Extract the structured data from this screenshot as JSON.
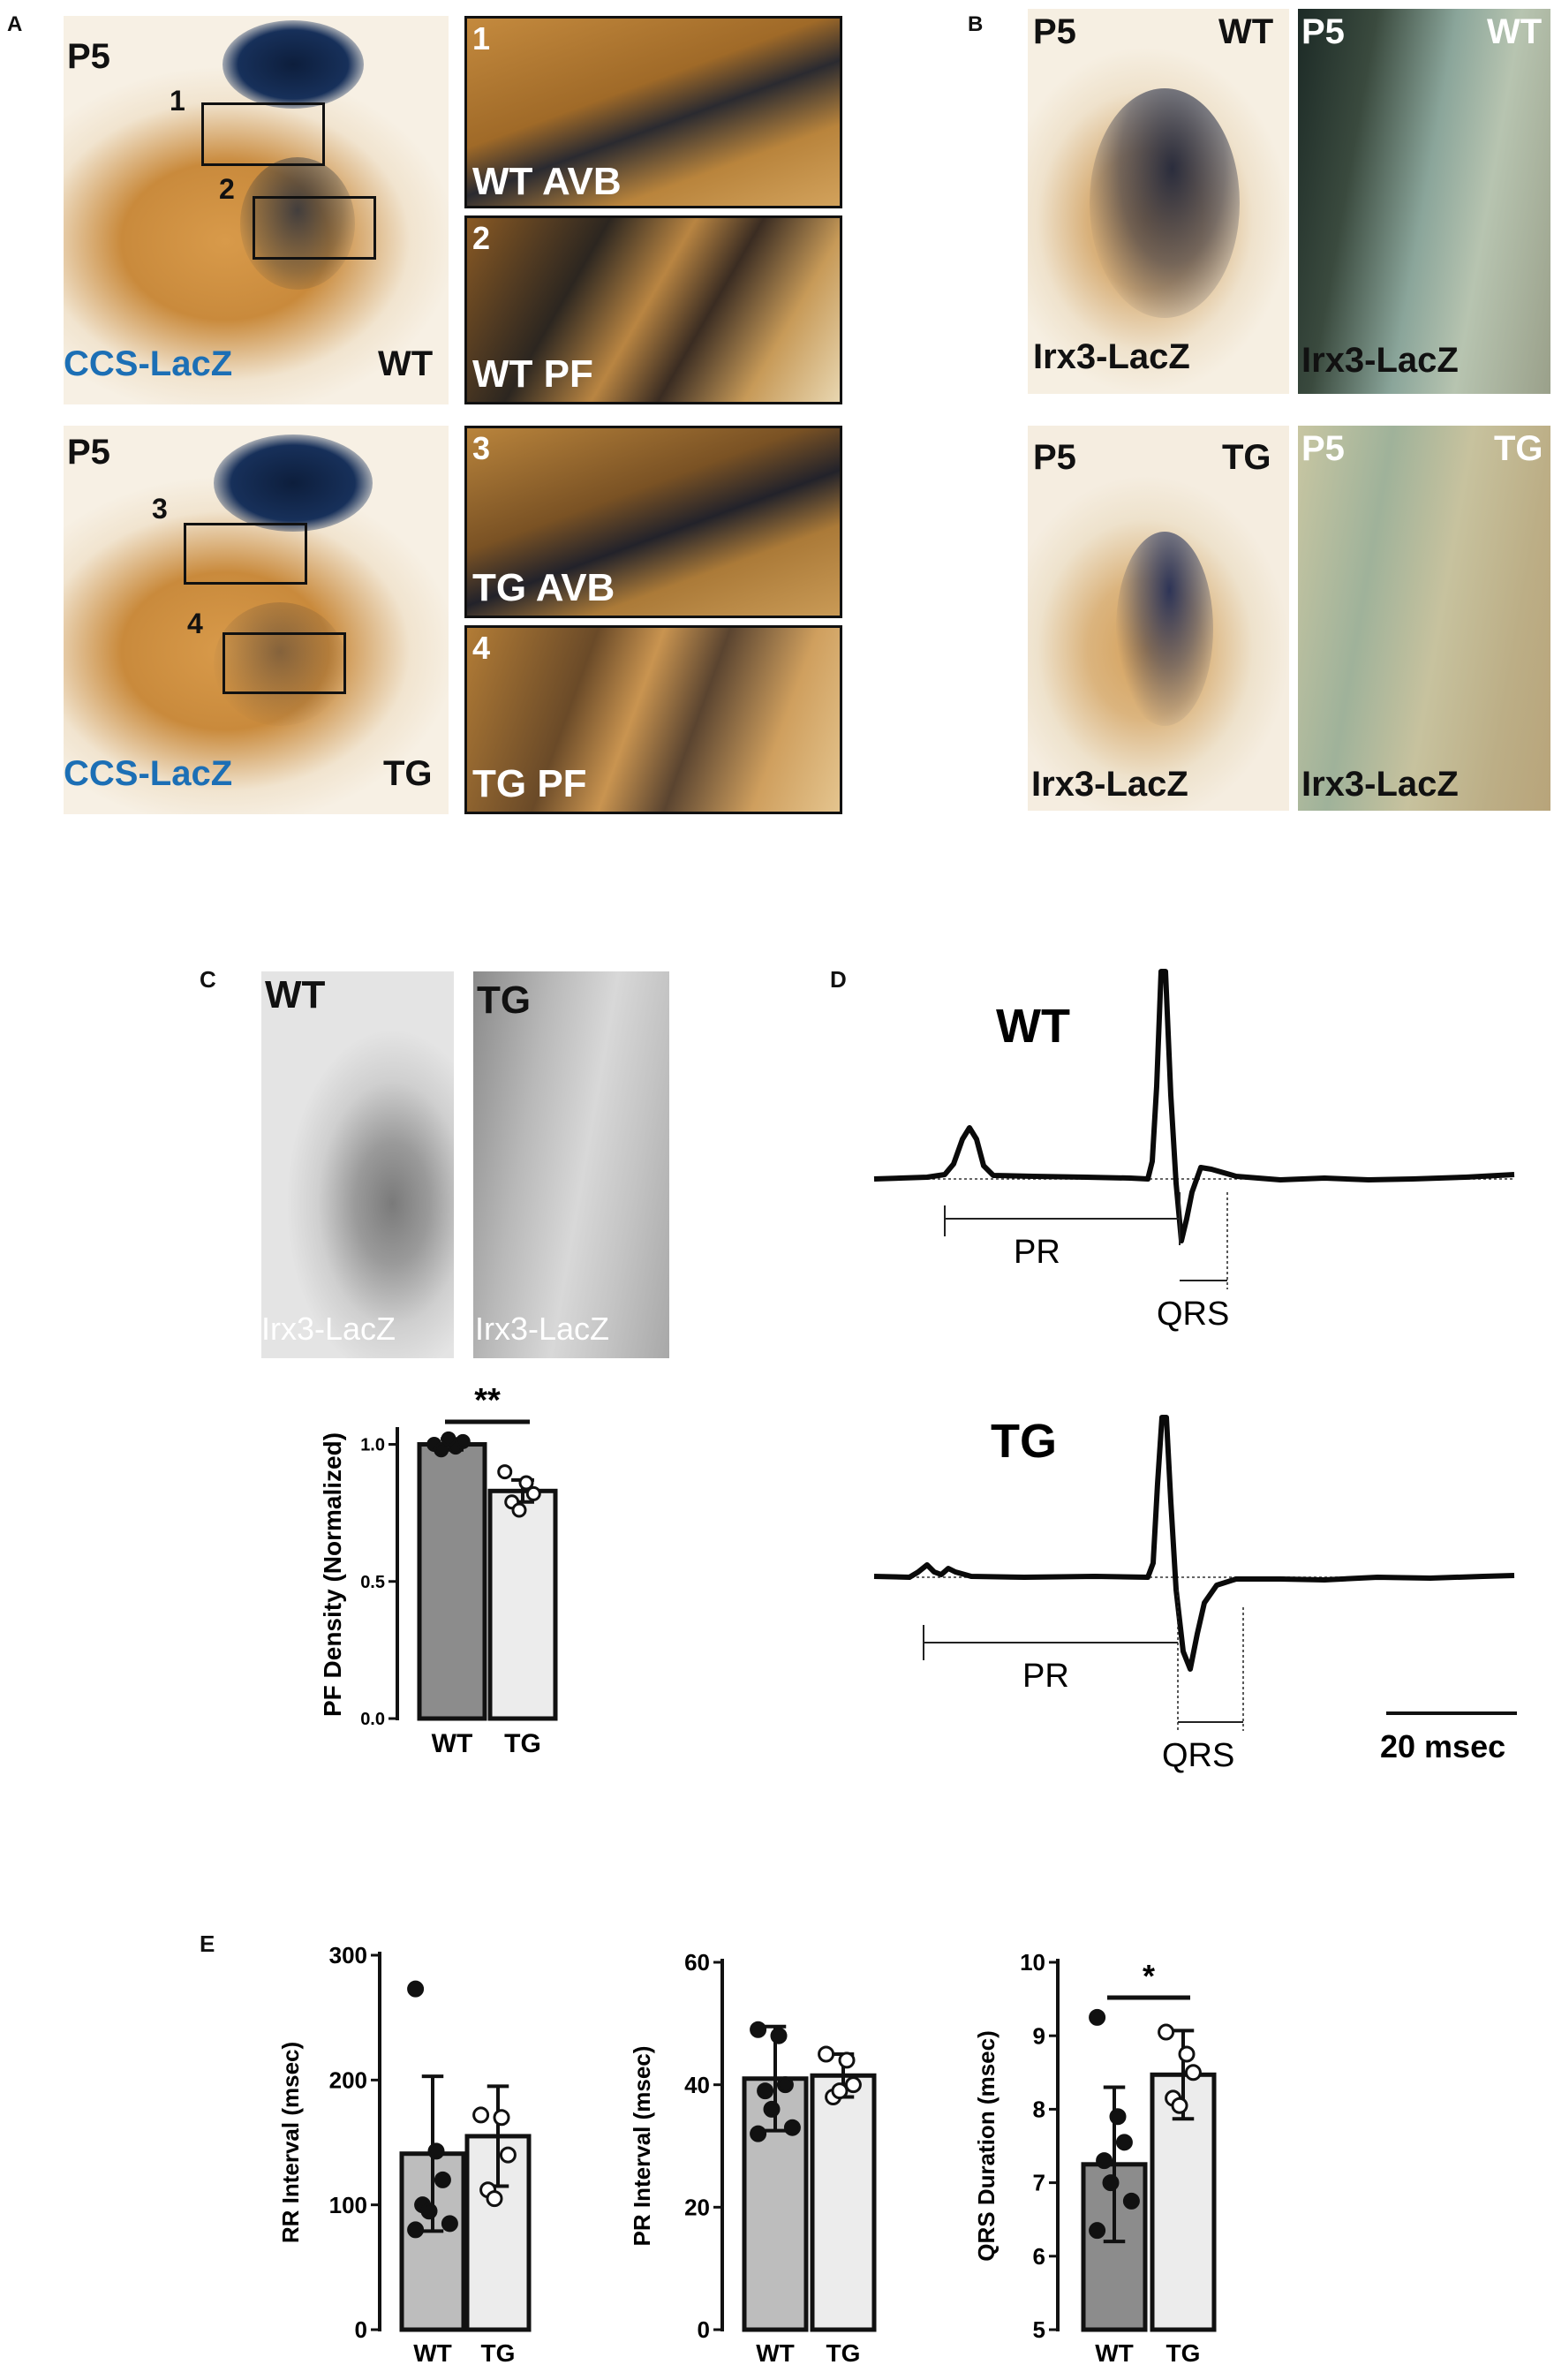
{
  "panels": {
    "A": {
      "letter": "A",
      "wt": {
        "stage": "P5",
        "genotype": "WT",
        "reporter": "CCS-LacZ",
        "box1": "1",
        "box2": "2",
        "inset1_num": "1",
        "inset1_label": "WT AVB",
        "inset2_num": "2",
        "inset2_label": "WT PF"
      },
      "tg": {
        "stage": "P5",
        "genotype": "TG",
        "reporter": "CCS-LacZ",
        "box1": "3",
        "box2": "4",
        "inset1_num": "3",
        "inset1_label": "TG AVB",
        "inset2_num": "4",
        "inset2_label": "TG PF"
      }
    },
    "B": {
      "letter": "B",
      "wt": {
        "stage": "P5",
        "genotype": "WT",
        "reporter": "Irx3-LacZ",
        "zoom_stage": "P5",
        "zoom_genotype": "WT",
        "zoom_reporter": "Irx3-LacZ"
      },
      "tg": {
        "stage": "P5",
        "genotype": "TG",
        "reporter": "Irx3-LacZ",
        "zoom_stage": "P5",
        "zoom_genotype": "TG",
        "zoom_reporter": "Irx3-LacZ"
      }
    },
    "C": {
      "letter": "C",
      "img_wt_label": "WT",
      "img_tg_label": "TG",
      "img_wt_reporter": "Irx3-LacZ",
      "img_tg_reporter": "Irx3-LacZ"
    },
    "D": {
      "letter": "D",
      "wt_label": "WT",
      "tg_label": "TG",
      "pr": "PR",
      "qrs": "QRS",
      "scale_bar": "20 msec"
    },
    "E": {
      "letter": "E"
    }
  },
  "chart_data": [
    {
      "type": "bar",
      "panel": "C",
      "categories": [
        "WT",
        "TG"
      ],
      "values": [
        1.0,
        0.83
      ],
      "errors": [
        0.02,
        0.04
      ],
      "points": [
        [
          1.0,
          0.99,
          1.01,
          0.98,
          1.02
        ],
        [
          0.9,
          0.86,
          0.82,
          0.79,
          0.76
        ]
      ],
      "ylabel": "PF Density (Normalized)",
      "yticks": [
        "0.0",
        "0.5",
        "1.0"
      ],
      "ylim": [
        0,
        1.05
      ],
      "significance": "**",
      "colors": [
        "#8c8c8c",
        "#ececec"
      ]
    },
    {
      "type": "bar",
      "panel": "E",
      "categories": [
        "WT",
        "TG"
      ],
      "values": [
        141,
        155
      ],
      "errors": [
        62,
        40
      ],
      "points": [
        [
          273,
          143,
          120,
          100,
          95,
          85,
          80
        ],
        [
          172,
          170,
          140,
          112,
          105
        ]
      ],
      "ylabel": "RR Interval (msec)",
      "yticks": [
        "0",
        "100",
        "200",
        "300"
      ],
      "ylim": [
        0,
        300
      ],
      "colors": [
        "#bdbdbd",
        "#ececec"
      ]
    },
    {
      "type": "bar",
      "panel": "E",
      "categories": [
        "WT",
        "TG"
      ],
      "values": [
        41,
        41.5
      ],
      "errors": [
        8.5,
        3.5
      ],
      "points": [
        [
          49,
          48,
          40,
          39,
          36,
          33,
          32
        ],
        [
          45,
          44,
          40,
          38,
          39
        ]
      ],
      "ylabel": "PR Interval (msec)",
      "yticks": [
        "0",
        "20",
        "40",
        "60"
      ],
      "ylim": [
        0,
        60
      ],
      "colors": [
        "#bdbdbd",
        "#ececec"
      ]
    },
    {
      "type": "bar",
      "panel": "E",
      "categories": [
        "WT",
        "TG"
      ],
      "values": [
        7.25,
        8.47
      ],
      "errors": [
        1.05,
        0.6
      ],
      "points": [
        [
          9.25,
          7.9,
          7.55,
          7.3,
          7.0,
          6.75,
          6.35
        ],
        [
          9.05,
          8.75,
          8.5,
          8.15,
          8.05
        ]
      ],
      "ylabel": "QRS Duration (msec)",
      "yticks": [
        "5",
        "6",
        "7",
        "8",
        "9",
        "10"
      ],
      "ylim": [
        5,
        10
      ],
      "significance": "*",
      "colors": [
        "#8c8c8c",
        "#ececec"
      ]
    }
  ]
}
